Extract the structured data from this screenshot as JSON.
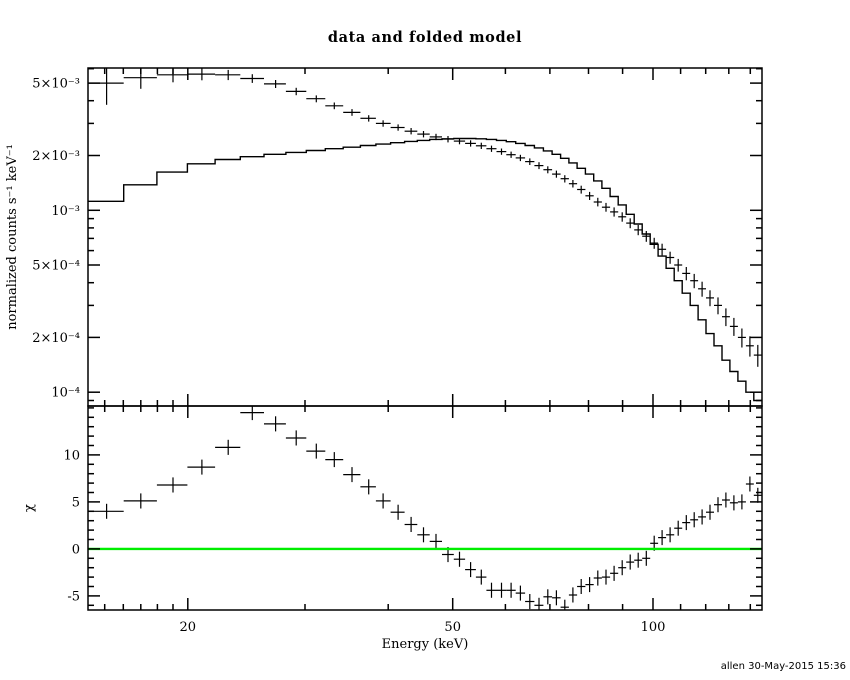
{
  "header": {
    "title": "data and folded model"
  },
  "footer": {
    "credit": "allen 30-May-2015 15:36"
  },
  "colors": {
    "foreground": "#000000",
    "background": "#ffffff",
    "zero_line": "#00ee00"
  },
  "chart_data": [
    {
      "type": "scatter",
      "panel": "spectrum",
      "title": "data and folded model",
      "xscale": "log",
      "yscale": "log",
      "xlim": [
        14.16,
        145.8
      ],
      "ylim": [
        8.4e-05,
        0.00605
      ],
      "ylabel": "normalized counts s⁻¹ keV⁻¹",
      "grid": false,
      "yticks": {
        "major": [
          0.005,
          0.002,
          0.001,
          0.0005,
          0.0002,
          0.0001
        ],
        "labels": [
          "5×10⁻³",
          "2×10⁻³",
          "10⁻³",
          "5×10⁻⁴",
          "2×10⁻⁴",
          "10⁻⁴"
        ],
        "minor": [
          0.006,
          0.004,
          0.003,
          0.0009,
          0.0008,
          0.0007,
          0.0006,
          0.0004,
          0.0003,
          9e-05
        ]
      },
      "x": [
        15.1,
        17.0,
        19.0,
        21.0,
        23.0,
        25.0,
        27.1,
        29.1,
        31.2,
        33.2,
        35.3,
        37.4,
        39.3,
        41.4,
        43.3,
        45.2,
        47.2,
        49.2,
        51.2,
        53.2,
        55.2,
        57.2,
        59.2,
        61.2,
        63.2,
        65.3,
        67.4,
        69.5,
        71.6,
        73.7,
        75.8,
        78.0,
        80.3,
        82.6,
        85.0,
        87.4,
        89.9,
        92.4,
        95.0,
        97.7,
        100.4,
        103.2,
        106.1,
        109.1,
        112.2,
        115.3,
        118.5,
        121.8,
        125.2,
        128.7,
        132.3,
        136.0,
        139.8,
        143.7
      ],
      "series": [
        {
          "name": "data",
          "marker": "plus-errorbar",
          "y": [
            0.005,
            0.00535,
            0.00555,
            0.0056,
            0.00555,
            0.0053,
            0.00495,
            0.0045,
            0.0041,
            0.00375,
            0.00345,
            0.0032,
            0.003,
            0.00285,
            0.00272,
            0.00262,
            0.00253,
            0.00246,
            0.0024,
            0.00233,
            0.00226,
            0.00218,
            0.0021,
            0.00202,
            0.00194,
            0.00185,
            0.00176,
            0.00167,
            0.00158,
            0.00149,
            0.0014,
            0.0013,
            0.0012,
            0.00111,
            0.00104,
            0.00098,
            0.00092,
            0.00085,
            0.00078,
            0.00072,
            0.00066,
            0.00061,
            0.00055,
            0.0005,
            0.00045,
            0.00041,
            0.00037,
            0.00033,
            0.0003,
            0.00026,
            0.00023,
            0.0002,
            0.00018,
            0.00016
          ],
          "yerr": [
            0.0012,
            0.0007,
            0.0005,
            0.00042,
            0.00036,
            0.00029,
            0.00025,
            0.00021,
            0.00018,
            0.00016,
            0.000145,
            0.00013,
            0.00012,
            0.000115,
            0.00011,
            0.000105,
            0.0001,
            0.0001,
            9.6e-05,
            9.3e-05,
            9e-05,
            8.7e-05,
            8.4e-05,
            8.1e-05,
            7.8e-05,
            7.8e-05,
            7.6e-05,
            7.3e-05,
            7.1e-05,
            6.9e-05,
            6.7e-05,
            6.5e-05,
            6.2e-05,
            6e-05,
            5.8e-05,
            5.7e-05,
            5.5e-05,
            5.3e-05,
            5.1e-05,
            4.9e-05,
            4.6e-05,
            4.5e-05,
            4.2e-05,
            4e-05,
            3.8e-05,
            3.7e-05,
            3.5e-05,
            3.3e-05,
            3.2e-05,
            2.9e-05,
            2.6e-05,
            2.4e-05,
            2.3e-05,
            2.2e-05
          ]
        },
        {
          "name": "folded model",
          "style": "step-histogram",
          "y": [
            0.00112,
            0.00138,
            0.00162,
            0.0018,
            0.0019,
            0.00197,
            0.00203,
            0.00208,
            0.00213,
            0.00218,
            0.00222,
            0.00227,
            0.00231,
            0.00235,
            0.00239,
            0.00242,
            0.00245,
            0.00247,
            0.00248,
            0.00248,
            0.00247,
            0.00245,
            0.00242,
            0.00238,
            0.00233,
            0.00227,
            0.0022,
            0.00212,
            0.00203,
            0.00193,
            0.00182,
            0.0017,
            0.00158,
            0.00145,
            0.00132,
            0.00119,
            0.00107,
            0.00095,
            0.00084,
            0.00074,
            0.00065,
            0.00056,
            0.00048,
            0.00041,
            0.00035,
            0.0003,
            0.00025,
            0.00021,
            0.00018,
            0.00015,
            0.00013,
            0.000115,
            0.0001,
            9e-05
          ]
        }
      ]
    },
    {
      "type": "scatter",
      "panel": "residuals",
      "xscale": "log",
      "yscale": "linear",
      "xlim": [
        14.16,
        145.8
      ],
      "ylim": [
        -6.5,
        15.2
      ],
      "xlabel": "Energy (keV)",
      "ylabel": "χ",
      "grid": false,
      "xticks": {
        "major": [
          20,
          50,
          100
        ],
        "labels": [
          "20",
          "50",
          "100"
        ],
        "minor": [
          15,
          16,
          17,
          18,
          19,
          30,
          40,
          60,
          70,
          80,
          90,
          110,
          120,
          130,
          140
        ]
      },
      "yticks": {
        "major": [
          -5,
          0,
          5,
          10
        ],
        "labels": [
          "-5",
          "0",
          "5",
          "10"
        ],
        "minor_step": 1
      },
      "zero_line": {
        "value": 0,
        "color": "#00ee00"
      },
      "x_same_as": 0,
      "series": [
        {
          "name": "chi residuals",
          "marker": "plus-errorbar",
          "y": [
            4.0,
            5.1,
            6.8,
            8.7,
            10.8,
            14.5,
            13.3,
            11.8,
            10.4,
            9.5,
            7.9,
            6.6,
            5.1,
            3.9,
            2.6,
            1.5,
            0.8,
            -0.6,
            -1.1,
            -2.2,
            -3.0,
            -4.4,
            -4.4,
            -4.4,
            -4.7,
            -5.6,
            -6.0,
            -5.1,
            -5.2,
            -6.2,
            -4.9,
            -4.0,
            -3.8,
            -3.1,
            -3.0,
            -2.6,
            -2.0,
            -1.4,
            -1.2,
            -1.0,
            0.6,
            1.2,
            1.5,
            2.2,
            2.8,
            3.1,
            3.4,
            3.9,
            4.7,
            5.2,
            4.9,
            5.0,
            6.9,
            5.7
          ],
          "yerr_const": 0.8
        }
      ]
    }
  ]
}
